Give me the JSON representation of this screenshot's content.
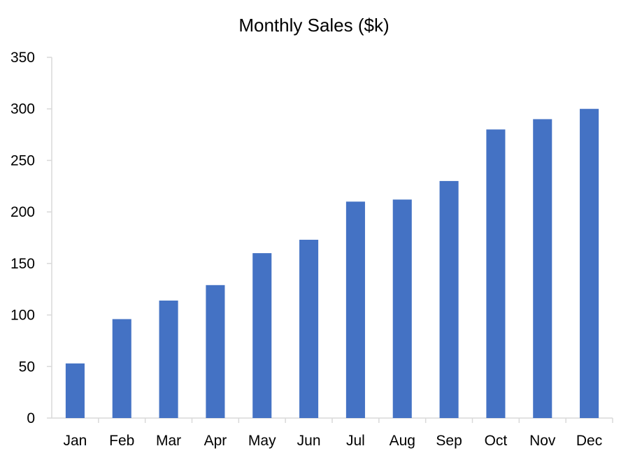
{
  "chart_data": {
    "type": "bar",
    "title": "Monthly Sales ($k)",
    "xlabel": "",
    "ylabel": "",
    "categories": [
      "Jan",
      "Feb",
      "Mar",
      "Apr",
      "May",
      "Jun",
      "Jul",
      "Aug",
      "Sep",
      "Oct",
      "Nov",
      "Dec"
    ],
    "values": [
      53,
      96,
      114,
      129,
      160,
      173,
      210,
      212,
      230,
      280,
      290,
      300
    ],
    "ylim": [
      0,
      350
    ],
    "yticks": [
      0,
      50,
      100,
      150,
      200,
      250,
      300,
      350
    ],
    "grid": false,
    "legend": "none",
    "colors": {
      "bar": "#4472C4",
      "axis": "#D9D9D9",
      "text": "#000000"
    }
  }
}
